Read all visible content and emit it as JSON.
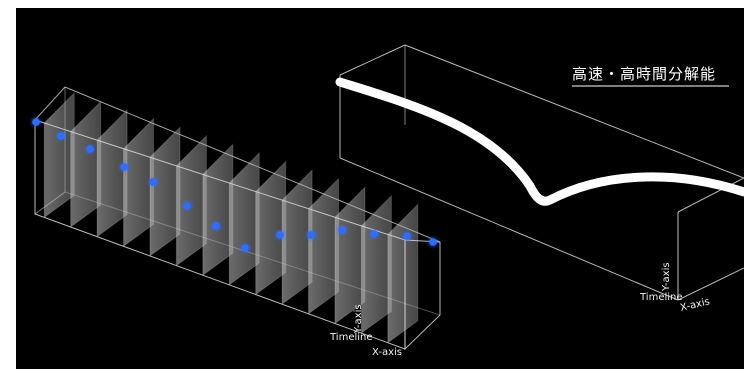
{
  "title": "高速・高時間分解能",
  "left_diagram": {
    "timeline_label": "Timeline",
    "x_axis_label": "X-axis",
    "y_axis_label": "Y-axis"
  },
  "right_diagram": {
    "timeline_label": "Timeline",
    "x_axis_label": "X-axis",
    "y_axis_label": "Y-axis"
  },
  "colors": {
    "background": "#000000",
    "outer_border": "#ffffff",
    "dot": "#2f6dff",
    "trace": "#ffffff"
  }
}
